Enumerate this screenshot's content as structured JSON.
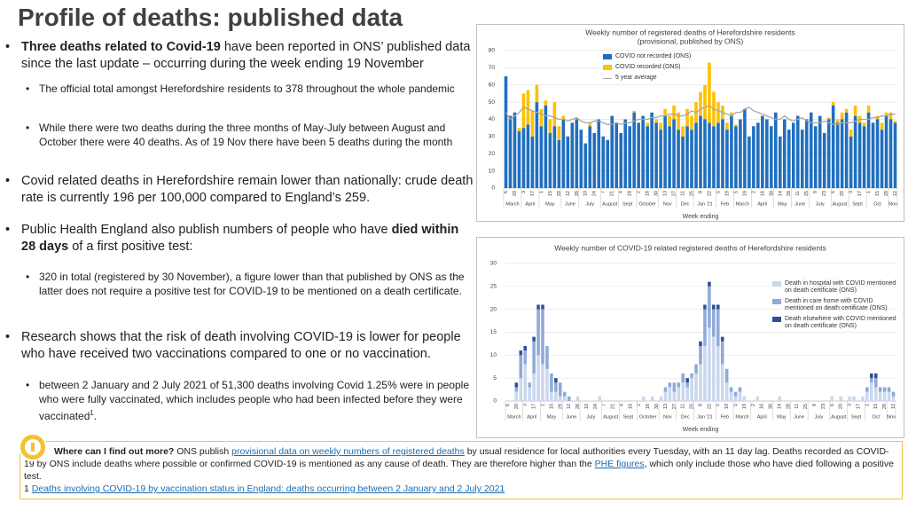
{
  "title": "Profile of deaths: published data",
  "bullets": [
    {
      "level": 1,
      "parts": [
        {
          "text": "Three deaths related to Covid-19",
          "bold": true
        },
        {
          "text": " have been reported in ONS’ published data since the last update – occurring during the week ending 19 November"
        }
      ]
    },
    {
      "level": 2,
      "parts": [
        {
          "text": "The official total amongst Herefordshire residents to 378 throughout the whole pandemic"
        }
      ]
    },
    {
      "level": 2,
      "parts": [
        {
          "text": "While there were two deaths during the three months of May-July between August and October there were 40 deaths. As of 19 Nov there have been 5 deaths during the month"
        }
      ]
    },
    {
      "level": 1,
      "parts": [
        {
          "text": "Covid related deaths in Herefordshire remain lower than nationally: crude death rate is currently 196 per 100,000 compared to England’s 259."
        }
      ]
    },
    {
      "level": 1,
      "parts": [
        {
          "text": "Public Health England also publish numbers of people who have "
        },
        {
          "text": "died within 28 days",
          "bold": true
        },
        {
          "text": " of a first positive test:"
        }
      ]
    },
    {
      "level": 2,
      "parts": [
        {
          "text": "320 in total (registered by 30 November), a figure lower than that published by ONS as the latter does not require a positive test for COVID-19 to be mentioned on a death certificate."
        }
      ]
    },
    {
      "level": 1,
      "parts": [
        {
          "text": "Research shows that the risk of death involving COVID-19 is lower for people who have received two vaccinations compared to one or no vaccination."
        }
      ]
    },
    {
      "level": 2,
      "parts": [
        {
          "text": "between 2 January and 2 July 2021 of 51,300 deaths involving Covid 1.25% were in people who were fully vaccinated, which includes people who had been infected before they were vaccinated"
        },
        {
          "text": "1",
          "sup": true
        },
        {
          "text": "."
        }
      ]
    }
  ],
  "footer": [
    {
      "parts": [
        {
          "text": "Where can I find out more?",
          "bold": true
        },
        {
          "text": " ONS publish "
        },
        {
          "text": "provisional data on weekly numbers of registered deaths",
          "link": true
        },
        {
          "text": " by usual residence for local authorities every Tuesday, with an 11 day lag. Deaths recorded as COVID-19 by ONS include deaths where possible or confirmed COVID-19 is mentioned as any cause of death. They are therefore higher than the "
        },
        {
          "text": "PHE figures",
          "link": true
        },
        {
          "text": ", which only include those who have died following a positive test."
        }
      ]
    },
    {
      "parts": [
        {
          "text": "1 "
        },
        {
          "text": "Deaths involving COVID-19 by vaccination status in England: deaths occurring between 2 January and 2 July 2021",
          "link": true
        }
      ]
    }
  ],
  "chart_data": [
    {
      "type": "bar",
      "stacked": true,
      "title": "Weekly number of registered deaths of Herefordshire residents",
      "subtitle": "(provisional, published by ONS)",
      "x_label": "Week ending",
      "categories": [
        "6",
        null,
        "20",
        null,
        "3",
        null,
        "17",
        null,
        "1",
        null,
        "15",
        null,
        "29",
        null,
        "12",
        null,
        "26",
        null,
        "10",
        null,
        "24",
        null,
        "7",
        null,
        "21",
        null,
        "4",
        null,
        "18",
        null,
        "2",
        null,
        "16",
        null,
        "30",
        null,
        "13",
        null,
        "27",
        null,
        "11",
        null,
        "25",
        null,
        "8",
        null,
        "22",
        null,
        "5",
        null,
        "19",
        null,
        "5",
        null,
        "19",
        null,
        "2",
        null,
        "16",
        null,
        "30",
        null,
        "14",
        null,
        "28",
        null,
        "11",
        null,
        "25",
        null,
        "9",
        null,
        "23",
        null,
        "6",
        null,
        "20",
        null,
        "3",
        null,
        "17",
        null,
        "1",
        null,
        "15",
        null,
        "29",
        null,
        "12"
      ],
      "months": [
        "March",
        "April",
        "May",
        "June",
        "July",
        "August",
        "Sept",
        "October",
        "Nov",
        "Dec",
        "Jan '21",
        "Feb",
        "March",
        "April",
        "May",
        "June",
        "July",
        "August",
        "Sept",
        "Oct",
        "Nov"
      ],
      "ylim": [
        0,
        80
      ],
      "yticks": [
        0,
        10,
        20,
        30,
        40,
        50,
        60,
        70,
        80
      ],
      "grid": true,
      "legend": "upper right",
      "series": [
        {
          "name": "COVID not recorded (ONS)",
          "type": "bar",
          "color": "#1f6fbf",
          "values": [
            65,
            42,
            44,
            33,
            35,
            37,
            30,
            50,
            36,
            48,
            32,
            36,
            28,
            40,
            30,
            38,
            40,
            34,
            26,
            36,
            32,
            40,
            30,
            28,
            42,
            38,
            32,
            40,
            36,
            44,
            38,
            42,
            36,
            44,
            38,
            34,
            42,
            36,
            40,
            34,
            30,
            36,
            34,
            38,
            42,
            40,
            38,
            36,
            38,
            40,
            34,
            42,
            36,
            40,
            46,
            30,
            36,
            38,
            42,
            40,
            36,
            44,
            30,
            40,
            34,
            38,
            42,
            34,
            40,
            44,
            36,
            42,
            32,
            40,
            48,
            38,
            40,
            44,
            30,
            42,
            38,
            36,
            44,
            38,
            40,
            34,
            42,
            40,
            38
          ]
        },
        {
          "name": "COVID recorded (ONS)",
          "type": "bar",
          "color": "#ffc000",
          "values": [
            0,
            0,
            0,
            2,
            20,
            20,
            15,
            10,
            10,
            3,
            8,
            14,
            8,
            2,
            0,
            0,
            1,
            0,
            0,
            2,
            0,
            0,
            0,
            0,
            0,
            0,
            0,
            0,
            0,
            1,
            0,
            0,
            2,
            0,
            2,
            4,
            4,
            6,
            8,
            10,
            6,
            10,
            8,
            12,
            14,
            20,
            35,
            20,
            12,
            8,
            4,
            2,
            1,
            0,
            0,
            0,
            0,
            0,
            0,
            0,
            0,
            0,
            0,
            0,
            0,
            0,
            0,
            0,
            0,
            0,
            0,
            0,
            0,
            1,
            2,
            2,
            4,
            2,
            4,
            6,
            4,
            2,
            4,
            0,
            2,
            4,
            2,
            4,
            1
          ]
        },
        {
          "name": "5 year average",
          "type": "line",
          "color": "#a6a6a6",
          "values": [
            44,
            40,
            42,
            44,
            47,
            46,
            45,
            44,
            43,
            42,
            42,
            41,
            40,
            40,
            39,
            40,
            41,
            39,
            38,
            38,
            39,
            39,
            38,
            37,
            37,
            38,
            37,
            38,
            38,
            39,
            40,
            40,
            40,
            41,
            41,
            42,
            42,
            43,
            43,
            42,
            42,
            43,
            45,
            44,
            46,
            47,
            48,
            46,
            45,
            44,
            43,
            42,
            44,
            44,
            46,
            47,
            45,
            44,
            43,
            42,
            41,
            40,
            40,
            42,
            40,
            39,
            40,
            41,
            39,
            38,
            38,
            38,
            39,
            38,
            37,
            37,
            38,
            38,
            38,
            39,
            40,
            40,
            40,
            41,
            41,
            42,
            42,
            43,
            43
          ]
        }
      ]
    },
    {
      "type": "bar",
      "stacked": true,
      "title": "Weekly number of COVID-19 related registered deaths of Herefordshire residents",
      "x_label": "Week ending",
      "categories": [
        "6",
        null,
        "20",
        null,
        "3",
        null,
        "17",
        null,
        "1",
        null,
        "15",
        null,
        "29",
        null,
        "12",
        null,
        "26",
        null,
        "10",
        null,
        "24",
        null,
        "7",
        null,
        "21",
        null,
        "4",
        null,
        "18",
        null,
        "2",
        null,
        "16",
        null,
        "30",
        null,
        "13",
        null,
        "27",
        null,
        "11",
        null,
        "25",
        null,
        "8",
        null,
        "22",
        null,
        "5",
        null,
        "19",
        null,
        "5",
        null,
        "19",
        null,
        "2",
        null,
        "16",
        null,
        "30",
        null,
        "14",
        null,
        "28",
        null,
        "11",
        null,
        "25",
        null,
        "9",
        null,
        "23",
        null,
        "6",
        null,
        "20",
        null,
        "3",
        null,
        "17",
        null,
        "1",
        null,
        "15",
        null,
        "29",
        null,
        "12"
      ],
      "months": [
        "March",
        "April",
        "May",
        "June",
        "July",
        "August",
        "Sept",
        "October",
        "Nov",
        "Dec",
        "Jan '21",
        "Feb",
        "March",
        "April",
        "May",
        "June",
        "July",
        "August",
        "Sept",
        "Oct",
        "Nov"
      ],
      "ylim": [
        0,
        30
      ],
      "yticks": [
        0,
        5,
        10,
        15,
        20,
        25,
        30
      ],
      "grid": true,
      "legend": "upper right",
      "series": [
        {
          "name": "Death in hospital with COVID mentioned on death certificate (ONS)",
          "type": "bar",
          "color": "#cad8ee",
          "values": [
            0,
            0,
            2,
            5,
            8,
            3,
            6,
            10,
            8,
            7,
            2,
            2,
            1,
            1,
            0,
            0,
            1,
            0,
            0,
            0,
            0,
            1,
            0,
            0,
            0,
            0,
            0,
            0,
            0,
            0,
            0,
            1,
            0,
            1,
            0,
            1,
            2,
            3,
            2,
            3,
            4,
            3,
            5,
            6,
            8,
            12,
            16,
            14,
            12,
            8,
            4,
            2,
            1,
            2,
            1,
            0,
            0,
            1,
            0,
            0,
            0,
            0,
            1,
            0,
            0,
            0,
            0,
            0,
            0,
            0,
            0,
            0,
            0,
            0,
            1,
            0,
            1,
            0,
            1,
            1,
            0,
            1,
            2,
            4,
            3,
            2,
            2,
            2,
            1
          ]
        },
        {
          "name": "Death in care home with COVID mentioned on death certificate (ONS)",
          "type": "bar",
          "color": "#8eaad9",
          "values": [
            0,
            0,
            1,
            5,
            3,
            1,
            7,
            10,
            12,
            5,
            4,
            2,
            3,
            1,
            1,
            0,
            0,
            0,
            0,
            0,
            0,
            0,
            0,
            0,
            0,
            0,
            0,
            0,
            0,
            0,
            0,
            0,
            0,
            0,
            0,
            0,
            1,
            1,
            2,
            1,
            2,
            1,
            1,
            2,
            4,
            8,
            9,
            6,
            8,
            5,
            3,
            1,
            1,
            1,
            0,
            0,
            0,
            0,
            0,
            0,
            0,
            0,
            0,
            0,
            0,
            0,
            0,
            0,
            0,
            0,
            0,
            0,
            0,
            0,
            0,
            0,
            0,
            0,
            0,
            0,
            0,
            0,
            1,
            1,
            2,
            1,
            1,
            1,
            1
          ]
        },
        {
          "name": "Death elsewhere with COVID mentioned on death certificate (ONS)",
          "type": "bar",
          "color": "#2e4f99",
          "values": [
            0,
            0,
            1,
            1,
            1,
            0,
            1,
            1,
            1,
            0,
            0,
            1,
            0,
            0,
            0,
            0,
            0,
            0,
            0,
            0,
            0,
            0,
            0,
            0,
            0,
            0,
            0,
            0,
            0,
            0,
            0,
            0,
            0,
            0,
            0,
            0,
            0,
            0,
            0,
            0,
            0,
            1,
            0,
            0,
            1,
            1,
            1,
            1,
            1,
            1,
            0,
            0,
            0,
            0,
            0,
            0,
            0,
            0,
            0,
            0,
            0,
            0,
            0,
            0,
            0,
            0,
            0,
            0,
            0,
            0,
            0,
            0,
            0,
            0,
            0,
            0,
            0,
            0,
            0,
            0,
            0,
            0,
            0,
            1,
            1,
            0,
            0,
            0,
            0
          ]
        }
      ]
    }
  ]
}
